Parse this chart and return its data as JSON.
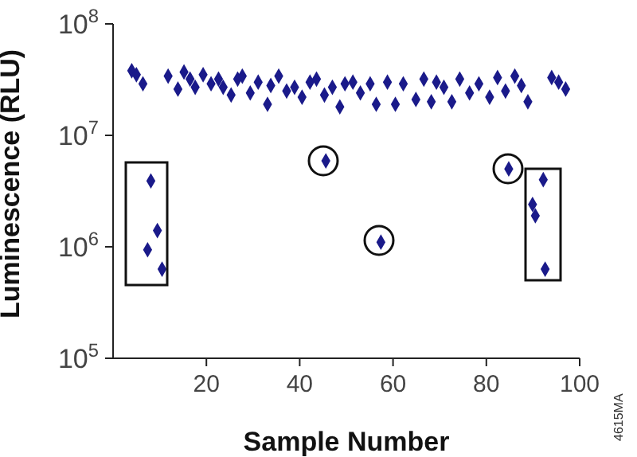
{
  "chart_data": {
    "type": "scatter",
    "xlabel": "Sample Number",
    "ylabel": "Luminescence (RLU)",
    "log": "y",
    "xlim": [
      0,
      100
    ],
    "xticks": [
      20,
      40,
      60,
      80,
      100
    ],
    "ylim": [
      100000,
      100000000
    ],
    "yticks": [
      {
        "value": 100000,
        "label": "10$^{5}$"
      },
      {
        "value": 1000000,
        "label": "10$^{6}$"
      },
      {
        "value": 10000000,
        "label": "10$^{7}$"
      },
      {
        "value": 100000000,
        "label": "10$^{8}$"
      }
    ],
    "marker": "diamond",
    "annotations": [
      "4615MA"
    ],
    "series": [
      {
        "color": "#1a1a8a",
        "x": [
          4,
          5,
          6.4,
          7.4,
          8.1,
          9.5,
          10.5,
          11.8,
          13.9,
          15.2,
          16.5,
          17.6,
          19.3,
          21,
          22.6,
          23.6,
          25.3,
          26.7,
          27.7,
          29.4,
          31.1,
          33.1,
          33.8,
          35.5,
          37.2,
          38.9,
          40.5,
          42.2,
          43.6,
          45.3,
          45.6,
          47,
          48.6,
          49.7,
          51.4,
          53,
          55.1,
          56.4,
          57.4,
          58.8,
          60.5,
          62.2,
          64.9,
          66.6,
          68.2,
          69.3,
          70.9,
          72.6,
          74.3,
          76.4,
          78.4,
          80.7,
          82.4,
          84.1,
          84.8,
          86.1,
          87.5,
          88.9,
          89.9,
          90.5,
          92.2,
          92.6,
          94,
          95.5,
          97
        ],
        "values": [
          38000000,
          35000000,
          29000000,
          940000,
          3900000,
          1400000,
          630000,
          34000000,
          26000000,
          37000000,
          32000000,
          27000000,
          35000000,
          29000000,
          32000000,
          27000000,
          23000000,
          32000000,
          34000000,
          24000000,
          30000000,
          19000000,
          28000000,
          34000000,
          25000000,
          27000000,
          22000000,
          30000000,
          32000000,
          23000000,
          5900000,
          27000000,
          18000000,
          29000000,
          30000000,
          24000000,
          29000000,
          19000000,
          1100000,
          30000000,
          19000000,
          29000000,
          21000000,
          32000000,
          20000000,
          30000000,
          27000000,
          20000000,
          32000000,
          24000000,
          29000000,
          22000000,
          33000000,
          25000000,
          5000000,
          34000000,
          28000000,
          20000000,
          2400000,
          1900000,
          4000000,
          630000,
          33000000,
          30000000,
          26000000
        ]
      }
    ]
  }
}
